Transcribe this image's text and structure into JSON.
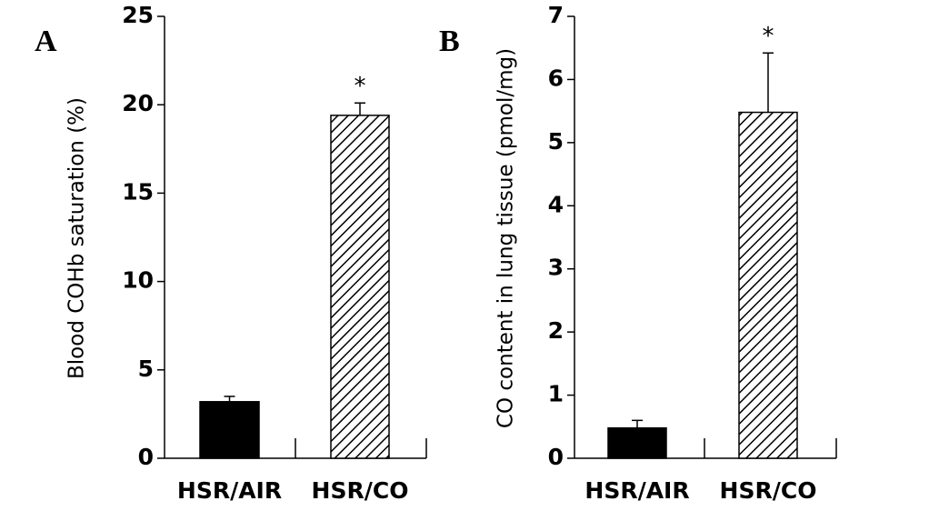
{
  "chart_data": [
    {
      "type": "bar",
      "panel": "A",
      "y_label": "Blood COHb saturation (%)",
      "categories": [
        "HSR/AIR",
        "HSR/CO"
      ],
      "values": [
        3.2,
        19.4
      ],
      "errors": [
        0.3,
        0.7
      ],
      "colors": [
        "#000000",
        "#ffffff"
      ],
      "hatch": [
        false,
        true
      ],
      "ylim": [
        0,
        25
      ],
      "yticks": [
        0,
        5,
        10,
        15,
        20,
        25
      ],
      "annotations": [
        {
          "text": "*",
          "category": "HSR/CO"
        }
      ]
    },
    {
      "type": "bar",
      "panel": "B",
      "y_label": "CO content in lung tissue (pmol/mg)",
      "categories": [
        "HSR/AIR",
        "HSR/CO"
      ],
      "values": [
        0.48,
        5.48
      ],
      "errors": [
        0.12,
        0.94
      ],
      "colors": [
        "#000000",
        "#ffffff"
      ],
      "hatch": [
        false,
        true
      ],
      "ylim": [
        0,
        7
      ],
      "yticks": [
        0,
        1,
        2,
        3,
        4,
        5,
        6,
        7
      ],
      "annotations": [
        {
          "text": "*",
          "category": "HSR/CO"
        }
      ]
    }
  ]
}
